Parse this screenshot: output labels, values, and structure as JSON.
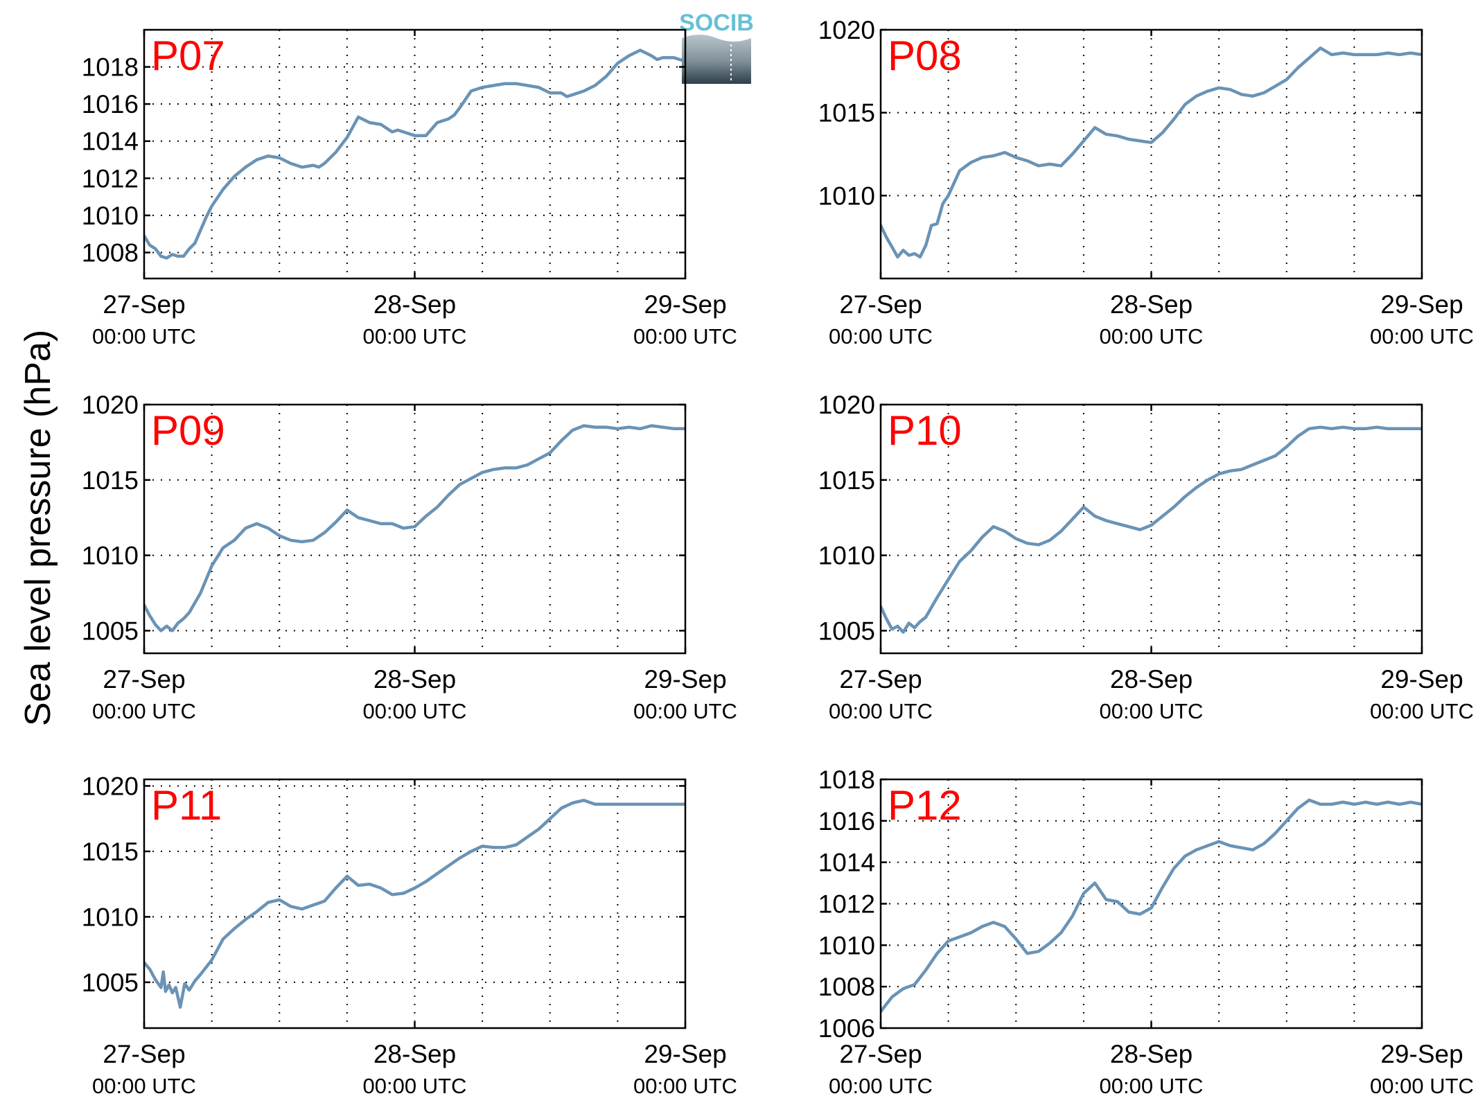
{
  "figure": {
    "ylabel": "Sea level pressure (hPa)",
    "logo_text": "SOCIB",
    "line_color": "#6a93b5",
    "title_color": "#ff0000"
  },
  "chart_data": [
    {
      "type": "line",
      "title": "P07",
      "ylim": [
        1006.6,
        1020.0
      ],
      "yticks": [
        1008,
        1010,
        1012,
        1014,
        1016,
        1018
      ],
      "xlim": [
        0,
        48
      ],
      "xticks": [
        0,
        24,
        48
      ],
      "xtick_labels": [
        "27-Sep",
        "28-Sep",
        "29-Sep"
      ],
      "xtick_sublabels": [
        "00:00 UTC",
        "00:00 UTC",
        "00:00 UTC"
      ],
      "x_minor_grid_hours": 6,
      "grid": true,
      "series": [
        {
          "x": [
            0,
            0.5,
            1,
            1.5,
            2,
            2.5,
            3,
            3.5,
            4,
            4.5,
            5,
            5.5,
            6,
            7,
            8,
            9,
            10,
            11,
            12,
            13,
            14,
            15,
            15.5,
            16,
            17,
            18,
            19,
            20,
            21,
            21.5,
            22,
            22.5,
            23,
            24,
            25,
            26,
            27,
            27.5,
            28,
            29,
            30,
            31,
            32,
            33,
            34,
            35,
            36,
            37,
            37.5,
            38,
            38.5,
            39,
            40,
            41,
            42,
            43,
            44,
            45,
            45.5,
            46,
            46.5,
            47,
            47.5,
            48
          ],
          "y": [
            1008.9,
            1008.4,
            1008.2,
            1007.8,
            1007.7,
            1007.9,
            1007.8,
            1007.8,
            1008.2,
            1008.5,
            1009.2,
            1009.9,
            1010.5,
            1011.4,
            1012.1,
            1012.6,
            1013.0,
            1013.2,
            1013.1,
            1012.8,
            1012.6,
            1012.7,
            1012.6,
            1012.8,
            1013.4,
            1014.2,
            1015.3,
            1015.0,
            1014.9,
            1014.7,
            1014.5,
            1014.6,
            1014.5,
            1014.3,
            1014.3,
            1015.0,
            1015.2,
            1015.4,
            1015.8,
            1016.7,
            1016.9,
            1017.0,
            1017.1,
            1017.1,
            1017.0,
            1016.9,
            1016.6,
            1016.6,
            1016.4,
            1016.5,
            1016.6,
            1016.7,
            1017.0,
            1017.5,
            1018.2,
            1018.6,
            1018.9,
            1018.6,
            1018.4,
            1018.5,
            1018.5,
            1018.5,
            1018.4,
            1018.3
          ]
        }
      ]
    },
    {
      "type": "line",
      "title": "P08",
      "ylim": [
        1005.0,
        1020.0
      ],
      "yticks": [
        1010,
        1015,
        1020
      ],
      "xlim": [
        0,
        48
      ],
      "xticks": [
        0,
        24,
        48
      ],
      "xtick_labels": [
        "27-Sep",
        "28-Sep",
        "29-Sep"
      ],
      "xtick_sublabels": [
        "00:00 UTC",
        "00:00 UTC",
        "00:00 UTC"
      ],
      "x_minor_grid_hours": 6,
      "grid": true,
      "series": [
        {
          "x": [
            0,
            0.5,
            1,
            1.5,
            2,
            2.5,
            3,
            3.5,
            4,
            4.5,
            5,
            5.5,
            6,
            7,
            8,
            9,
            10,
            11,
            12,
            13,
            14,
            15,
            16,
            17,
            18,
            19,
            20,
            21,
            22,
            23,
            24,
            25,
            26,
            27,
            28,
            29,
            30,
            31,
            32,
            33,
            34,
            35,
            36,
            37,
            38,
            39,
            40,
            41,
            42,
            43,
            44,
            45,
            46,
            47,
            48
          ],
          "y": [
            1008.2,
            1007.5,
            1006.9,
            1006.3,
            1006.7,
            1006.4,
            1006.5,
            1006.3,
            1007.0,
            1008.2,
            1008.3,
            1009.5,
            1010.0,
            1011.5,
            1012.0,
            1012.3,
            1012.4,
            1012.6,
            1012.3,
            1012.1,
            1011.8,
            1011.9,
            1011.8,
            1012.5,
            1013.3,
            1014.1,
            1013.7,
            1013.6,
            1013.4,
            1013.3,
            1013.2,
            1013.8,
            1014.6,
            1015.5,
            1016.0,
            1016.3,
            1016.5,
            1016.4,
            1016.1,
            1016.0,
            1016.2,
            1016.6,
            1017.0,
            1017.7,
            1018.3,
            1018.9,
            1018.5,
            1018.6,
            1018.5,
            1018.5,
            1018.5,
            1018.6,
            1018.5,
            1018.6,
            1018.5
          ]
        }
      ]
    },
    {
      "type": "line",
      "title": "P09",
      "ylim": [
        1003.5,
        1020.0
      ],
      "yticks": [
        1005,
        1010,
        1015,
        1020
      ],
      "xlim": [
        0,
        48
      ],
      "xticks": [
        0,
        24,
        48
      ],
      "xtick_labels": [
        "27-Sep",
        "28-Sep",
        "29-Sep"
      ],
      "xtick_sublabels": [
        "00:00 UTC",
        "00:00 UTC",
        "00:00 UTC"
      ],
      "x_minor_grid_hours": 6,
      "grid": true,
      "series": [
        {
          "x": [
            0,
            0.5,
            1,
            1.5,
            2,
            2.5,
            3,
            3.5,
            4,
            5,
            6,
            7,
            8,
            9,
            10,
            11,
            12,
            13,
            14,
            15,
            16,
            17,
            18,
            19,
            20,
            21,
            22,
            23,
            24,
            25,
            26,
            27,
            28,
            29,
            30,
            31,
            32,
            33,
            34,
            35,
            36,
            37,
            38,
            39,
            40,
            41,
            42,
            43,
            44,
            45,
            46,
            47,
            48
          ],
          "y": [
            1006.7,
            1006.0,
            1005.4,
            1005.0,
            1005.3,
            1005.0,
            1005.5,
            1005.8,
            1006.2,
            1007.5,
            1009.3,
            1010.5,
            1011.0,
            1011.8,
            1012.1,
            1011.8,
            1011.3,
            1011.0,
            1010.9,
            1011.0,
            1011.5,
            1012.2,
            1013.0,
            1012.5,
            1012.3,
            1012.1,
            1012.1,
            1011.8,
            1011.9,
            1012.6,
            1013.2,
            1014.0,
            1014.7,
            1015.1,
            1015.5,
            1015.7,
            1015.8,
            1015.8,
            1016.0,
            1016.4,
            1016.8,
            1017.6,
            1018.3,
            1018.6,
            1018.5,
            1018.5,
            1018.4,
            1018.5,
            1018.4,
            1018.6,
            1018.5,
            1018.4,
            1018.4
          ]
        }
      ]
    },
    {
      "type": "line",
      "title": "P10",
      "ylim": [
        1003.5,
        1020.0
      ],
      "yticks": [
        1005,
        1010,
        1015,
        1020
      ],
      "xlim": [
        0,
        48
      ],
      "xticks": [
        0,
        24,
        48
      ],
      "xtick_labels": [
        "27-Sep",
        "28-Sep",
        "29-Sep"
      ],
      "xtick_sublabels": [
        "00:00 UTC",
        "00:00 UTC",
        "00:00 UTC"
      ],
      "x_minor_grid_hours": 6,
      "grid": true,
      "series": [
        {
          "x": [
            0,
            0.5,
            1,
            1.5,
            2,
            2.5,
            3,
            3.5,
            4,
            5,
            6,
            7,
            8,
            9,
            10,
            11,
            12,
            13,
            14,
            15,
            16,
            17,
            18,
            19,
            20,
            21,
            22,
            23,
            24,
            25,
            26,
            27,
            28,
            29,
            30,
            31,
            32,
            33,
            34,
            35,
            36,
            37,
            38,
            39,
            40,
            41,
            42,
            43,
            44,
            45,
            46,
            47,
            48
          ],
          "y": [
            1006.6,
            1005.8,
            1005.1,
            1005.3,
            1004.9,
            1005.5,
            1005.2,
            1005.6,
            1005.9,
            1007.2,
            1008.4,
            1009.6,
            1010.3,
            1011.2,
            1011.9,
            1011.6,
            1011.1,
            1010.8,
            1010.7,
            1011.0,
            1011.6,
            1012.4,
            1013.2,
            1012.6,
            1012.3,
            1012.1,
            1011.9,
            1011.7,
            1012.0,
            1012.6,
            1013.2,
            1013.9,
            1014.5,
            1015.0,
            1015.4,
            1015.6,
            1015.7,
            1016.0,
            1016.3,
            1016.6,
            1017.2,
            1017.9,
            1018.4,
            1018.5,
            1018.4,
            1018.5,
            1018.4,
            1018.4,
            1018.5,
            1018.4,
            1018.4,
            1018.4,
            1018.4
          ]
        }
      ]
    },
    {
      "type": "line",
      "title": "P11",
      "ylim": [
        1001.5,
        1020.5
      ],
      "yticks": [
        1005,
        1010,
        1015,
        1020
      ],
      "xlim": [
        0,
        48
      ],
      "xticks": [
        0,
        24,
        48
      ],
      "xtick_labels": [
        "27-Sep",
        "28-Sep",
        "29-Sep"
      ],
      "xtick_sublabels": [
        "00:00 UTC",
        "00:00 UTC",
        "00:00 UTC"
      ],
      "x_minor_grid_hours": 6,
      "grid": true,
      "series": [
        {
          "x": [
            0,
            0.5,
            1,
            1.5,
            1.7,
            1.9,
            2.2,
            2.5,
            2.8,
            3.2,
            3.6,
            4,
            4.5,
            5,
            6,
            7,
            8,
            9,
            10,
            11,
            12,
            13,
            14,
            15,
            16,
            17,
            18,
            19,
            20,
            21,
            22,
            23,
            24,
            25,
            26,
            27,
            28,
            29,
            30,
            31,
            32,
            33,
            34,
            35,
            36,
            37,
            38,
            39,
            40,
            41,
            42,
            43,
            44,
            45,
            46,
            47,
            48
          ],
          "y": [
            1006.5,
            1006.0,
            1005.2,
            1004.6,
            1005.8,
            1004.3,
            1004.8,
            1004.2,
            1004.6,
            1003.1,
            1004.9,
            1004.4,
            1005.1,
            1005.6,
            1006.7,
            1008.3,
            1009.1,
            1009.8,
            1010.4,
            1011.1,
            1011.3,
            1010.8,
            1010.6,
            1010.9,
            1011.2,
            1012.2,
            1013.1,
            1012.4,
            1012.5,
            1012.2,
            1011.7,
            1011.8,
            1012.2,
            1012.7,
            1013.3,
            1013.9,
            1014.5,
            1015.0,
            1015.4,
            1015.3,
            1015.3,
            1015.5,
            1016.1,
            1016.7,
            1017.5,
            1018.3,
            1018.7,
            1018.9,
            1018.6,
            1018.6,
            1018.6,
            1018.6,
            1018.6,
            1018.6,
            1018.6,
            1018.6,
            1018.6
          ]
        }
      ]
    },
    {
      "type": "line",
      "title": "P12",
      "ylim": [
        1006.0,
        1018.0
      ],
      "yticks": [
        1006,
        1008,
        1010,
        1012,
        1014,
        1016,
        1018
      ],
      "xlim": [
        0,
        48
      ],
      "xticks": [
        0,
        24,
        48
      ],
      "xtick_labels": [
        "27-Sep",
        "28-Sep",
        "29-Sep"
      ],
      "xtick_sublabels": [
        "00:00 UTC",
        "00:00 UTC",
        "00:00 UTC"
      ],
      "x_minor_grid_hours": 6,
      "grid": true,
      "series": [
        {
          "x": [
            0,
            1,
            2,
            3,
            4,
            5,
            6,
            7,
            8,
            9,
            10,
            11,
            12,
            13,
            14,
            15,
            16,
            17,
            18,
            19,
            20,
            21,
            22,
            23,
            24,
            25,
            26,
            27,
            28,
            29,
            30,
            31,
            32,
            33,
            34,
            35,
            36,
            37,
            38,
            39,
            40,
            41,
            42,
            43,
            44,
            45,
            46,
            47,
            48
          ],
          "y": [
            1006.8,
            1007.5,
            1007.9,
            1008.1,
            1008.8,
            1009.6,
            1010.2,
            1010.4,
            1010.6,
            1010.9,
            1011.1,
            1010.9,
            1010.3,
            1009.6,
            1009.7,
            1010.1,
            1010.6,
            1011.4,
            1012.5,
            1013.0,
            1012.2,
            1012.1,
            1011.6,
            1011.5,
            1011.8,
            1012.8,
            1013.7,
            1014.3,
            1014.6,
            1014.8,
            1015.0,
            1014.8,
            1014.7,
            1014.6,
            1014.9,
            1015.4,
            1016.0,
            1016.6,
            1017.0,
            1016.8,
            1016.8,
            1016.9,
            1016.8,
            1016.9,
            1016.8,
            1016.9,
            1016.8,
            1016.9,
            1016.8
          ]
        }
      ]
    }
  ]
}
